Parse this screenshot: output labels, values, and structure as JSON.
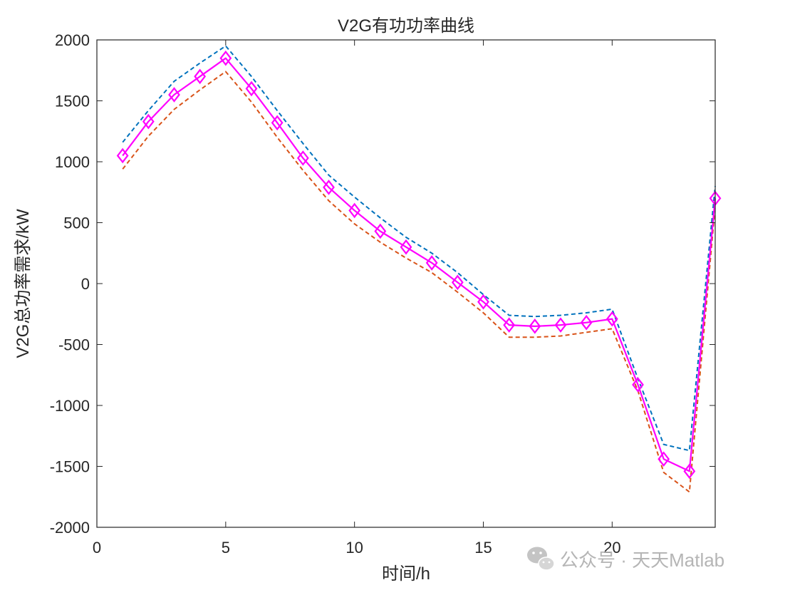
{
  "chart_data": {
    "type": "line",
    "title": "V2G有功功率曲线",
    "xlabel": "时间/h",
    "ylabel": "V2G总功率需求/kW",
    "xlim": [
      0,
      24
    ],
    "ylim": [
      -2000,
      2000
    ],
    "xticks": [
      "0",
      "5",
      "10",
      "15",
      "20"
    ],
    "xtick_values": [
      0,
      5,
      10,
      15,
      20
    ],
    "yticks": [
      "2000",
      "1500",
      "1000",
      "500",
      "0",
      "-500",
      "-1000",
      "-1500",
      "-2000"
    ],
    "ytick_values": [
      2000,
      1500,
      1000,
      500,
      0,
      -500,
      -1000,
      -1500,
      -2000
    ],
    "grid": false,
    "box": true,
    "x": [
      1,
      2,
      3,
      4,
      5,
      6,
      7,
      8,
      9,
      10,
      11,
      12,
      13,
      14,
      15,
      16,
      17,
      18,
      19,
      20,
      21,
      22,
      23,
      24
    ],
    "series": [
      {
        "color": "#0072BD",
        "style": "dashed",
        "values": [
          1160,
          1420,
          1660,
          1810,
          1950,
          1700,
          1420,
          1150,
          890,
          710,
          540,
          380,
          250,
          90,
          -90,
          -260,
          -270,
          -260,
          -240,
          -210,
          -780,
          -1320,
          -1370,
          800
        ]
      },
      {
        "color": "#D95319",
        "style": "dashed",
        "values": [
          940,
          1210,
          1430,
          1590,
          1740,
          1490,
          1200,
          930,
          680,
          490,
          340,
          210,
          90,
          -70,
          -240,
          -440,
          -440,
          -430,
          -400,
          -370,
          -880,
          -1550,
          -1710,
          640
        ]
      },
      {
        "color": "#FF00FF",
        "style": "solid",
        "marker": "diamond",
        "values": [
          1050,
          1330,
          1550,
          1700,
          1850,
          1600,
          1320,
          1030,
          790,
          600,
          430,
          300,
          170,
          10,
          -150,
          -340,
          -350,
          -340,
          -320,
          -290,
          -830,
          -1440,
          -1540,
          700
        ]
      }
    ]
  },
  "watermark": {
    "text": "公众号 · 天天Matlab",
    "icon": "wechat-icon"
  }
}
